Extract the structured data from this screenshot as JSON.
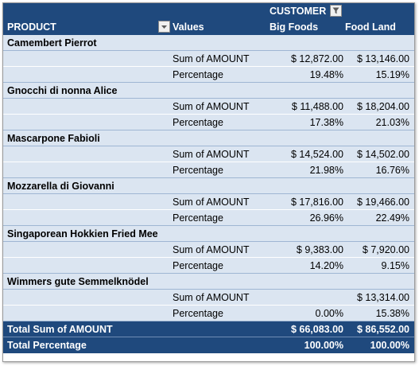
{
  "header": {
    "column_field": "CUSTOMER",
    "row_field": "PRODUCT",
    "values_label": "Values",
    "columns": [
      "Big Foods",
      "Food Land"
    ]
  },
  "groups": [
    {
      "product": "Camembert Pierrot",
      "sum": {
        "label": "Sum of AMOUNT",
        "big": "$ 12,872.00",
        "food": "$ 13,146.00"
      },
      "pct": {
        "label": "Percentage",
        "big": "19.48%",
        "food": "15.19%"
      }
    },
    {
      "product": "Gnocchi di nonna Alice",
      "sum": {
        "label": "Sum of AMOUNT",
        "big": "$ 11,488.00",
        "food": "$ 18,204.00"
      },
      "pct": {
        "label": "Percentage",
        "big": "17.38%",
        "food": "21.03%"
      }
    },
    {
      "product": "Mascarpone Fabioli",
      "sum": {
        "label": "Sum of AMOUNT",
        "big": "$ 14,524.00",
        "food": "$ 14,502.00"
      },
      "pct": {
        "label": "Percentage",
        "big": "21.98%",
        "food": "16.76%"
      }
    },
    {
      "product": "Mozzarella di Giovanni",
      "sum": {
        "label": "Sum of AMOUNT",
        "big": "$ 17,816.00",
        "food": "$ 19,466.00"
      },
      "pct": {
        "label": "Percentage",
        "big": "26.96%",
        "food": "22.49%"
      }
    },
    {
      "product": "Singaporean Hokkien Fried Mee",
      "sum": {
        "label": "Sum of AMOUNT",
        "big": "$ 9,383.00",
        "food": "$ 7,920.00"
      },
      "pct": {
        "label": "Percentage",
        "big": "14.20%",
        "food": "9.15%"
      }
    },
    {
      "product": "Wimmers gute Semmelknödel",
      "sum": {
        "label": "Sum of AMOUNT",
        "big": "",
        "food": "$ 13,314.00"
      },
      "pct": {
        "label": "Percentage",
        "big": "0.00%",
        "food": "15.38%"
      }
    }
  ],
  "totals": {
    "sum": {
      "label": "Total Sum of AMOUNT",
      "big": "$ 66,083.00",
      "food": "$ 86,552.00"
    },
    "pct": {
      "label": "Total Percentage",
      "big": "100.00%",
      "food": "100.00%"
    }
  },
  "colors": {
    "header": "#1f497d",
    "row": "#dbe5f1"
  },
  "icons": {
    "column_filter": "funnel-filter-icon",
    "row_filter": "dropdown-arrow-icon"
  }
}
